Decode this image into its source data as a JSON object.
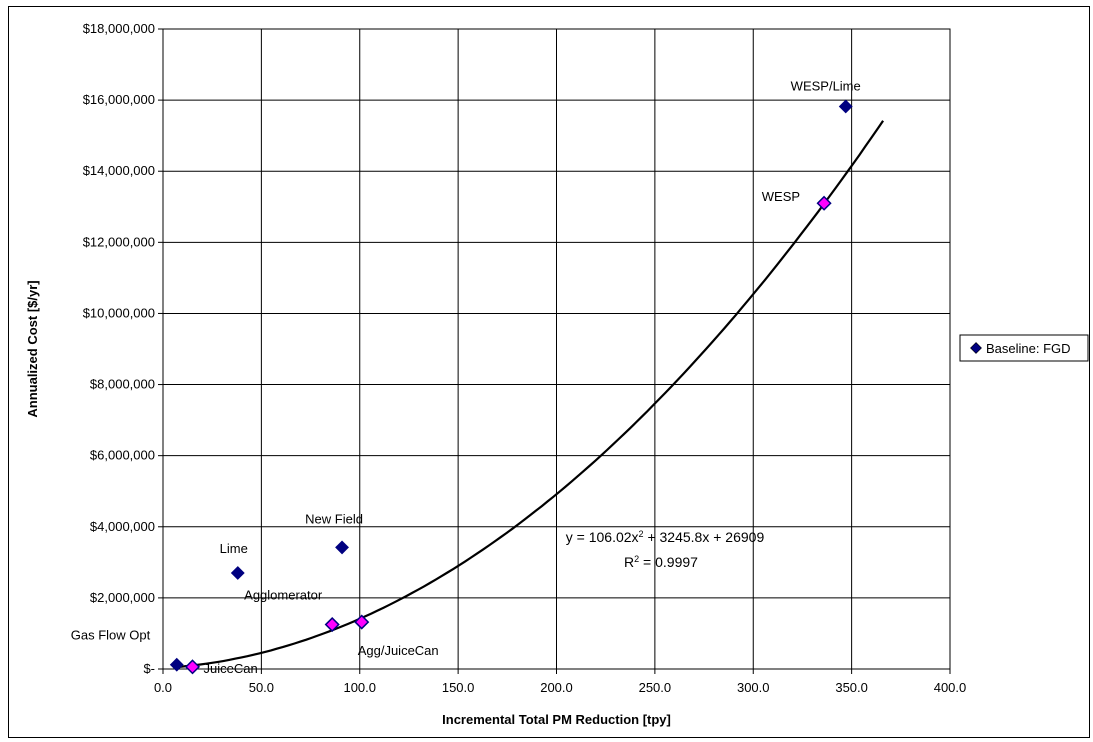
{
  "chart_data": {
    "type": "scatter",
    "xlabel": "Incremental Total PM Reduction [tpy]",
    "ylabel": "Annualized Cost [$/yr]",
    "xlim": [
      0,
      400
    ],
    "ylim": [
      0,
      18000000
    ],
    "x_ticks": [
      "0.0",
      "50.0",
      "100.0",
      "150.0",
      "200.0",
      "250.0",
      "300.0",
      "350.0",
      "400.0"
    ],
    "y_ticks": [
      "$-",
      "$2,000,000",
      "$4,000,000",
      "$6,000,000",
      "$8,000,000",
      "$10,000,000",
      "$12,000,000",
      "$14,000,000",
      "$16,000,000",
      "$18,000,000"
    ],
    "grid": true,
    "legend": {
      "placement": "right",
      "entries": [
        "Baseline: FGD"
      ]
    },
    "series": [
      {
        "name": "Baseline: FGD",
        "marker": "diamond",
        "color": "#000080",
        "points": [
          {
            "label": "Gas Flow Opt",
            "x": 7,
            "y": 120000
          },
          {
            "label": "JuiceCan",
            "x": 15,
            "y": 60000
          },
          {
            "label": "Lime",
            "x": 38,
            "y": 2700000
          },
          {
            "label": "Agglomerator",
            "x": 86,
            "y": 1250000
          },
          {
            "label": "New Field",
            "x": 91,
            "y": 3420000
          },
          {
            "label": "Agg/JuiceCan",
            "x": 101,
            "y": 1320000
          },
          {
            "label": "WESP",
            "x": 336,
            "y": 13100000
          },
          {
            "label": "WESP/Lime",
            "x": 347,
            "y": 15820000
          }
        ]
      }
    ],
    "highlight_color": "#ff00ff",
    "highlighted_points": [
      "JuiceCan",
      "Agglomerator",
      "Agg/JuiceCan",
      "WESP"
    ],
    "trendline": {
      "type": "polynomial",
      "coefficients": [
        106.02,
        3245.8,
        26909
      ],
      "x_range": [
        7,
        366
      ],
      "equation_text": [
        "y = 106.02x",
        "2",
        " + 3245.8x + 26909"
      ],
      "r2_text": [
        "R",
        "2",
        " = 0.9997"
      ]
    }
  }
}
